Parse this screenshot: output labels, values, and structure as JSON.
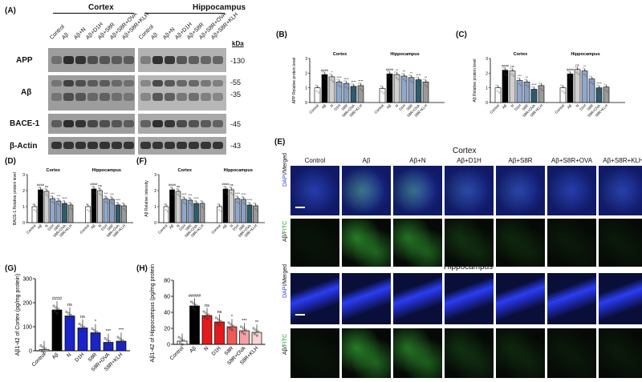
{
  "panels": {
    "A": {
      "label": "(A)",
      "cortex_title": "Cortex",
      "hippocampus_title": "Hippocampus",
      "lanes": [
        "Control",
        "Aβ",
        "Aβ+N",
        "Aβ+D1H",
        "Aβ+S8R",
        "Aβ+S8R+OVA",
        "Aβ+S8R+KLH"
      ],
      "kda_title": "kDa",
      "rows": [
        {
          "name": "APP",
          "kda": [
            "-130"
          ]
        },
        {
          "name": "Aβ",
          "kda": [
            "-55",
            "-35"
          ]
        },
        {
          "name": "BACE-1",
          "kda": [
            "-45"
          ]
        },
        {
          "name": "β-Actin",
          "kda": [
            "-43"
          ]
        }
      ]
    },
    "B": {
      "label": "(B)",
      "ylabel": "APP Relative protein level"
    },
    "C": {
      "label": "(C)",
      "ylabel": "Aβ Relative protein level"
    },
    "D": {
      "label": "(D)",
      "ylabel": "BACE-1 Relative protein level"
    },
    "F": {
      "label": "(F)",
      "ylabel": "Aβ Relative intensity"
    },
    "G": {
      "label": "(G)",
      "ylabel": "Aβ1-42 of Cortex (pg/mg protein)"
    },
    "H": {
      "label": "(H)",
      "ylabel": "Aβ1-42 of Hippocampus (pg/mg protein)"
    },
    "E": {
      "label": "(E)",
      "cortex_title": "Cortex",
      "hippocampus_title": "Hippocampus",
      "columns": [
        "Control",
        "Aβ",
        "Aβ+N",
        "Aβ+D1H",
        "Aβ+S8R",
        "Aβ+S8R+OVA",
        "Aβ+S8R+KLH"
      ],
      "row_dapi": "DAPI/Merged",
      "row_fitc": "Aβ/FITC"
    }
  },
  "small_chart": {
    "group_titles": [
      "Cortex",
      "Hippocampus"
    ],
    "categories": [
      "Control",
      "Aβ",
      "N",
      "D1H",
      "S8R",
      "S8R+OVA",
      "S8R+KLH"
    ],
    "yticks": [
      "0",
      "1",
      "2",
      "3"
    ]
  },
  "chart_data": [
    {
      "type": "bar",
      "id": "B",
      "ylim": [
        0,
        3
      ],
      "series": [
        {
          "name": "Cortex",
          "values": [
            1.0,
            1.9,
            1.75,
            1.4,
            1.3,
            1.1,
            1.15
          ]
        },
        {
          "name": "Hippocampus",
          "values": [
            0.95,
            1.95,
            1.9,
            1.8,
            1.7,
            1.55,
            1.4
          ]
        }
      ],
      "sig": {
        "Cortex": [
          "",
          "####",
          "*",
          "****",
          "****",
          "****",
          "****"
        ],
        "Hippocampus": [
          "",
          "####",
          "**",
          "**",
          "**",
          "****",
          "**"
        ]
      }
    },
    {
      "type": "bar",
      "id": "C",
      "ylim": [
        0,
        3
      ],
      "series": [
        {
          "name": "Cortex",
          "values": [
            1.0,
            2.2,
            2.15,
            1.5,
            1.4,
            0.9,
            1.15
          ]
        },
        {
          "name": "Hippocampus",
          "values": [
            1.0,
            1.95,
            2.25,
            2.15,
            1.6,
            1.0,
            1.05
          ]
        }
      ],
      "sig": {
        "Cortex": [
          "",
          "####",
          "ns",
          "***",
          "**",
          "****",
          ""
        ],
        "Hippocampus": [
          "",
          "####",
          "ns",
          "**",
          "",
          "****",
          ""
        ]
      }
    },
    {
      "type": "bar",
      "id": "D",
      "ylim": [
        0,
        3
      ],
      "series": [
        {
          "name": "Cortex",
          "values": [
            1.0,
            2.05,
            1.95,
            1.5,
            1.35,
            1.2,
            1.1
          ]
        },
        {
          "name": "Hippocampus",
          "values": [
            1.0,
            2.1,
            2.0,
            1.5,
            1.45,
            1.1,
            1.05
          ]
        }
      ],
      "sig": {
        "Cortex": [
          "",
          "####",
          "ns",
          "***",
          "***",
          "****",
          ""
        ],
        "Hippocampus": [
          "",
          "####",
          "ns",
          "***",
          "***",
          "****",
          ""
        ]
      }
    },
    {
      "type": "bar",
      "id": "F",
      "ylim": [
        0,
        3
      ],
      "series": [
        {
          "name": "Cortex",
          "values": [
            1.0,
            2.05,
            1.95,
            1.45,
            1.4,
            1.2,
            1.2
          ]
        },
        {
          "name": "Hippocampus",
          "values": [
            1.0,
            2.1,
            2.05,
            1.5,
            1.45,
            1.1,
            1.05
          ]
        }
      ],
      "sig": {
        "Cortex": [
          "",
          "####",
          "ns",
          "****",
          "***",
          "****",
          ""
        ],
        "Hippocampus": [
          "",
          "####",
          "ns",
          "****",
          "****",
          "****",
          ""
        ]
      }
    },
    {
      "type": "bar",
      "id": "G",
      "ylim": [
        0,
        300
      ],
      "yticks": [
        "0",
        "100",
        "200",
        "300"
      ],
      "categories": [
        "Control",
        "Aβ",
        "N",
        "D1H",
        "S8R",
        "S8R+OVA",
        "S8R+KLH"
      ],
      "values": [
        5,
        170,
        145,
        95,
        75,
        35,
        40
      ],
      "sig": [
        "",
        "####",
        "ns",
        "ns",
        "*",
        "***",
        "***"
      ]
    },
    {
      "type": "bar",
      "id": "H",
      "ylim": [
        0,
        80
      ],
      "yticks": [
        "0",
        "20",
        "40",
        "60",
        "80"
      ],
      "categories": [
        "Control",
        "Aβ",
        "N",
        "D1H",
        "S8R",
        "S8R+OVA",
        "S8R+KLH"
      ],
      "values": [
        4,
        48,
        36,
        28,
        22,
        17,
        15
      ],
      "sig": [
        "",
        "#####",
        "ns",
        "ns",
        "*",
        "***",
        "**"
      ]
    }
  ],
  "colors": {
    "white": "#ffffff",
    "black": "#000000",
    "light": "#cfcfcf",
    "blue1": "#8fa8cc",
    "blue2": "#8aa0c2",
    "teal": "#2f5b6e",
    "gray": "#9a9a9a",
    "red1": "#e41a1c",
    "red2": "#ee5a5a",
    "red3": "#f6a1a1",
    "red4": "#fbd3d3",
    "blueG": "#1a24c8"
  }
}
